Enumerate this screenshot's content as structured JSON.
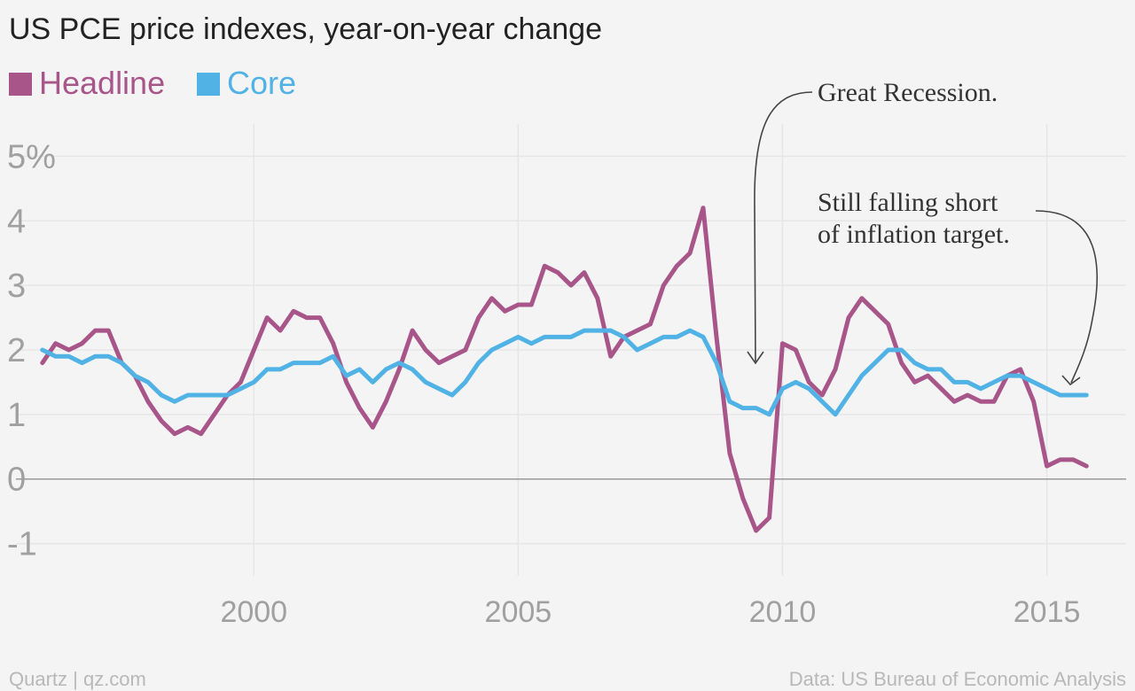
{
  "chart_data": {
    "type": "line",
    "title": "US PCE price indexes, year-on-year change",
    "y_unit_suffix": "%",
    "ylim": [
      -1.5,
      5.5
    ],
    "xlim": [
      1995.5,
      2016.5
    ],
    "y_ticks": [
      {
        "value": 5,
        "label": "5%"
      },
      {
        "value": 4,
        "label": "4"
      },
      {
        "value": 3,
        "label": "3"
      },
      {
        "value": 2,
        "label": "2"
      },
      {
        "value": 1,
        "label": "1"
      },
      {
        "value": 0,
        "label": "0"
      },
      {
        "value": -1,
        "label": "-1"
      }
    ],
    "x_ticks": [
      {
        "value": 2000,
        "label": "2000"
      },
      {
        "value": 2005,
        "label": "2005"
      },
      {
        "value": 2010,
        "label": "2010"
      },
      {
        "value": 2015,
        "label": "2015"
      }
    ],
    "grid": true,
    "legend_position": "top-left",
    "series": [
      {
        "name": "Headline",
        "color": "#a8558a",
        "points": [
          [
            1996.0,
            1.8
          ],
          [
            1996.25,
            2.1
          ],
          [
            1996.5,
            2.0
          ],
          [
            1996.75,
            2.1
          ],
          [
            1997.0,
            2.3
          ],
          [
            1997.25,
            2.3
          ],
          [
            1997.5,
            1.8
          ],
          [
            1997.75,
            1.6
          ],
          [
            1998.0,
            1.2
          ],
          [
            1998.25,
            0.9
          ],
          [
            1998.5,
            0.7
          ],
          [
            1998.75,
            0.8
          ],
          [
            1999.0,
            0.7
          ],
          [
            1999.25,
            1.0
          ],
          [
            1999.5,
            1.3
          ],
          [
            1999.75,
            1.5
          ],
          [
            2000.0,
            2.0
          ],
          [
            2000.25,
            2.5
          ],
          [
            2000.5,
            2.3
          ],
          [
            2000.75,
            2.6
          ],
          [
            2001.0,
            2.5
          ],
          [
            2001.25,
            2.5
          ],
          [
            2001.5,
            2.1
          ],
          [
            2001.75,
            1.5
          ],
          [
            2002.0,
            1.1
          ],
          [
            2002.25,
            0.8
          ],
          [
            2002.5,
            1.2
          ],
          [
            2002.75,
            1.7
          ],
          [
            2003.0,
            2.3
          ],
          [
            2003.25,
            2.0
          ],
          [
            2003.5,
            1.8
          ],
          [
            2003.75,
            1.9
          ],
          [
            2004.0,
            2.0
          ],
          [
            2004.25,
            2.5
          ],
          [
            2004.5,
            2.8
          ],
          [
            2004.75,
            2.6
          ],
          [
            2005.0,
            2.7
          ],
          [
            2005.25,
            2.7
          ],
          [
            2005.5,
            3.3
          ],
          [
            2005.75,
            3.2
          ],
          [
            2006.0,
            3.0
          ],
          [
            2006.25,
            3.2
          ],
          [
            2006.5,
            2.8
          ],
          [
            2006.75,
            1.9
          ],
          [
            2007.0,
            2.2
          ],
          [
            2007.25,
            2.3
          ],
          [
            2007.5,
            2.4
          ],
          [
            2007.75,
            3.0
          ],
          [
            2008.0,
            3.3
          ],
          [
            2008.25,
            3.5
          ],
          [
            2008.5,
            4.2
          ],
          [
            2008.75,
            2.2
          ],
          [
            2009.0,
            0.4
          ],
          [
            2009.25,
            -0.3
          ],
          [
            2009.5,
            -0.8
          ],
          [
            2009.75,
            -0.6
          ],
          [
            2010.0,
            2.1
          ],
          [
            2010.25,
            2.0
          ],
          [
            2010.5,
            1.5
          ],
          [
            2010.75,
            1.3
          ],
          [
            2011.0,
            1.7
          ],
          [
            2011.25,
            2.5
          ],
          [
            2011.5,
            2.8
          ],
          [
            2011.75,
            2.6
          ],
          [
            2012.0,
            2.4
          ],
          [
            2012.25,
            1.8
          ],
          [
            2012.5,
            1.5
          ],
          [
            2012.75,
            1.6
          ],
          [
            2013.0,
            1.4
          ],
          [
            2013.25,
            1.2
          ],
          [
            2013.5,
            1.3
          ],
          [
            2013.75,
            1.2
          ],
          [
            2014.0,
            1.2
          ],
          [
            2014.25,
            1.6
          ],
          [
            2014.5,
            1.7
          ],
          [
            2014.75,
            1.2
          ],
          [
            2015.0,
            0.2
          ],
          [
            2015.25,
            0.3
          ],
          [
            2015.5,
            0.3
          ],
          [
            2015.75,
            0.2
          ]
        ]
      },
      {
        "name": "Core",
        "color": "#51b2e5",
        "points": [
          [
            1996.0,
            2.0
          ],
          [
            1996.25,
            1.9
          ],
          [
            1996.5,
            1.9
          ],
          [
            1996.75,
            1.8
          ],
          [
            1997.0,
            1.9
          ],
          [
            1997.25,
            1.9
          ],
          [
            1997.5,
            1.8
          ],
          [
            1997.75,
            1.6
          ],
          [
            1998.0,
            1.5
          ],
          [
            1998.25,
            1.3
          ],
          [
            1998.5,
            1.2
          ],
          [
            1998.75,
            1.3
          ],
          [
            1999.0,
            1.3
          ],
          [
            1999.25,
            1.3
          ],
          [
            1999.5,
            1.3
          ],
          [
            1999.75,
            1.4
          ],
          [
            2000.0,
            1.5
          ],
          [
            2000.25,
            1.7
          ],
          [
            2000.5,
            1.7
          ],
          [
            2000.75,
            1.8
          ],
          [
            2001.0,
            1.8
          ],
          [
            2001.25,
            1.8
          ],
          [
            2001.5,
            1.9
          ],
          [
            2001.75,
            1.6
          ],
          [
            2002.0,
            1.7
          ],
          [
            2002.25,
            1.5
          ],
          [
            2002.5,
            1.7
          ],
          [
            2002.75,
            1.8
          ],
          [
            2003.0,
            1.7
          ],
          [
            2003.25,
            1.5
          ],
          [
            2003.5,
            1.4
          ],
          [
            2003.75,
            1.3
          ],
          [
            2004.0,
            1.5
          ],
          [
            2004.25,
            1.8
          ],
          [
            2004.5,
            2.0
          ],
          [
            2004.75,
            2.1
          ],
          [
            2005.0,
            2.2
          ],
          [
            2005.25,
            2.1
          ],
          [
            2005.5,
            2.2
          ],
          [
            2005.75,
            2.2
          ],
          [
            2006.0,
            2.2
          ],
          [
            2006.25,
            2.3
          ],
          [
            2006.5,
            2.3
          ],
          [
            2006.75,
            2.3
          ],
          [
            2007.0,
            2.2
          ],
          [
            2007.25,
            2.0
          ],
          [
            2007.5,
            2.1
          ],
          [
            2007.75,
            2.2
          ],
          [
            2008.0,
            2.2
          ],
          [
            2008.25,
            2.3
          ],
          [
            2008.5,
            2.2
          ],
          [
            2008.75,
            1.8
          ],
          [
            2009.0,
            1.2
          ],
          [
            2009.25,
            1.1
          ],
          [
            2009.5,
            1.1
          ],
          [
            2009.75,
            1.0
          ],
          [
            2010.0,
            1.4
          ],
          [
            2010.25,
            1.5
          ],
          [
            2010.5,
            1.4
          ],
          [
            2010.75,
            1.2
          ],
          [
            2011.0,
            1.0
          ],
          [
            2011.25,
            1.3
          ],
          [
            2011.5,
            1.6
          ],
          [
            2011.75,
            1.8
          ],
          [
            2012.0,
            2.0
          ],
          [
            2012.25,
            2.0
          ],
          [
            2012.5,
            1.8
          ],
          [
            2012.75,
            1.7
          ],
          [
            2013.0,
            1.7
          ],
          [
            2013.25,
            1.5
          ],
          [
            2013.5,
            1.5
          ],
          [
            2013.75,
            1.4
          ],
          [
            2014.0,
            1.5
          ],
          [
            2014.25,
            1.6
          ],
          [
            2014.5,
            1.6
          ],
          [
            2014.75,
            1.5
          ],
          [
            2015.0,
            1.4
          ],
          [
            2015.25,
            1.3
          ],
          [
            2015.5,
            1.3
          ],
          [
            2015.75,
            1.3
          ]
        ]
      }
    ],
    "annotations": [
      {
        "lines": [
          "Great Recession."
        ]
      },
      {
        "lines": [
          "Still falling short",
          "of inflation target."
        ]
      }
    ]
  },
  "footer": {
    "left": "Quartz | qz.com",
    "right": "Data: US Bureau of Economic Analysis"
  }
}
